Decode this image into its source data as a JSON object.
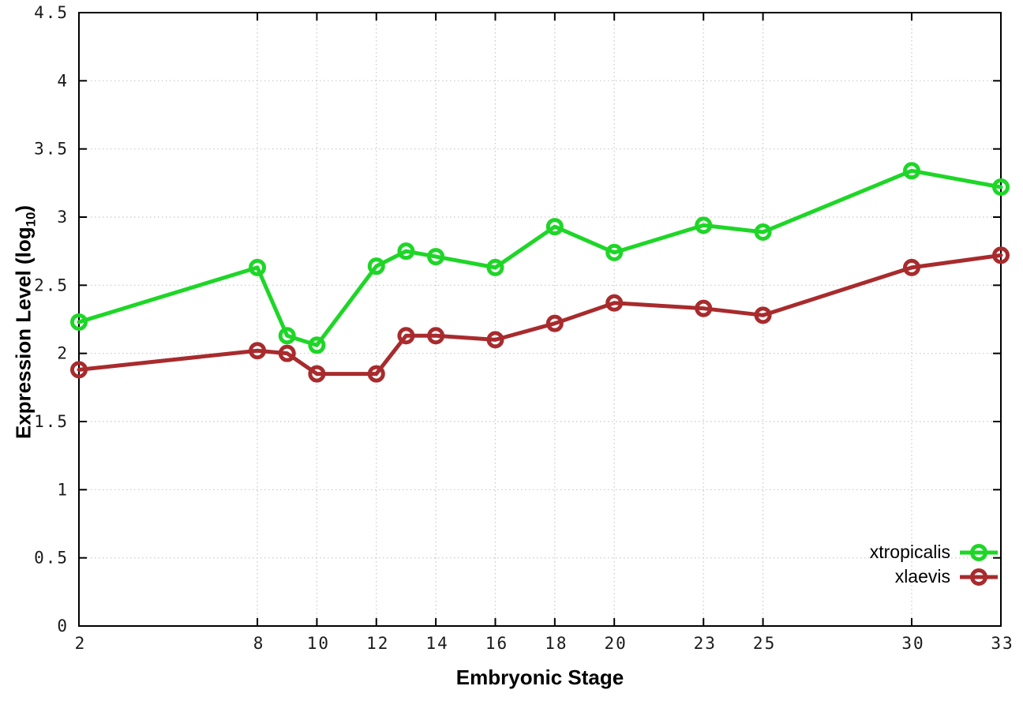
{
  "figure": {
    "background": "#ffffff",
    "axis_color": "#000000",
    "grid_color": "#c8c8c8",
    "tick_label_color": "#1a1a1a"
  },
  "chart_data": {
    "type": "line",
    "title": "",
    "xlabel": "Embryonic Stage",
    "ylabel": "Expression Level (log10)",
    "ylabel_parts": {
      "prefix": "Expression Level (log",
      "sub": "10",
      "suffix": ")"
    },
    "xlim": [
      2,
      33
    ],
    "ylim": [
      0,
      4.5
    ],
    "grid": true,
    "legend_position": "bottom-right",
    "x_ticks": [
      2,
      8,
      10,
      12,
      14,
      16,
      18,
      20,
      23,
      25,
      30,
      33
    ],
    "x_tick_labels": [
      "2",
      "8",
      "10",
      "12",
      "14",
      "16",
      "18",
      "20",
      "23",
      "25",
      "30",
      "33"
    ],
    "y_ticks": [
      0,
      0.5,
      1,
      1.5,
      2,
      2.5,
      3,
      3.5,
      4,
      4.5
    ],
    "y_tick_labels": [
      "0",
      "0.5",
      "1",
      "1.5",
      "2",
      "2.5",
      "3",
      "3.5",
      "4",
      "4.5"
    ],
    "marker": "open-circle",
    "x": [
      2,
      8,
      9,
      10,
      12,
      13,
      14,
      16,
      18,
      20,
      23,
      25,
      30,
      33
    ],
    "series": [
      {
        "name": "xtropicalis",
        "color": "#1ed627",
        "values": [
          2.23,
          2.63,
          2.13,
          2.06,
          2.64,
          2.75,
          2.71,
          2.63,
          2.93,
          2.74,
          2.94,
          2.89,
          3.34,
          3.22
        ]
      },
      {
        "name": "xlaevis",
        "color": "#a82b2d",
        "values": [
          1.88,
          2.02,
          2.0,
          1.85,
          1.85,
          2.13,
          2.13,
          2.1,
          2.22,
          2.37,
          2.33,
          2.28,
          2.63,
          2.72
        ]
      }
    ]
  }
}
